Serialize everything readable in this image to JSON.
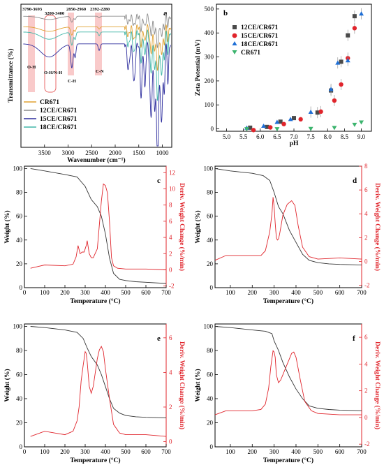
{
  "chart_data": [
    {
      "panel": "a",
      "type": "line",
      "xlabel": "Wavenumber (cm⁻¹)",
      "ylabel": "Transmittance (%)",
      "xlim": [
        4000,
        800
      ],
      "x_ticks": [
        4000,
        3500,
        3000,
        2500,
        2000,
        1500,
        1000
      ],
      "x_tick_labels": [
        "",
        "3500",
        "3000",
        "2500",
        "2000",
        "1500",
        "1000"
      ],
      "band_labels": [
        "3790-3693",
        "3200-3400",
        "2850-2960",
        "2392-2280"
      ],
      "band_names": [
        "O-H",
        "O-H/N-H",
        "C-H",
        "C-N"
      ],
      "series": [
        {
          "name": "CR671",
          "color": "#e0a030",
          "offset": 0.85
        },
        {
          "name": "12CE/CR671",
          "color": "#8c8c8c",
          "offset": 0.93
        },
        {
          "name": "15CE/CR671",
          "color": "#2e2e9e",
          "offset": 0.72
        },
        {
          "name": "18CE/CR671",
          "color": "#40b6a8",
          "offset": 0.81
        }
      ]
    },
    {
      "panel": "b",
      "type": "scatter",
      "xlabel": "pH",
      "ylabel": "Zeta Potential (mV)",
      "xlim": [
        4.7,
        9.3
      ],
      "ylim": [
        -10,
        520
      ],
      "x_ticks": [
        5.0,
        5.5,
        6.0,
        6.5,
        7.0,
        7.5,
        8.0,
        8.5,
        9.0
      ],
      "x_tick_labels": [
        "5.0",
        "5.5",
        "6.0",
        "6.5",
        "7.0",
        "7.5",
        "8.0",
        "8.5",
        "9.0"
      ],
      "y_ticks": [
        0,
        100,
        200,
        300,
        400,
        500
      ],
      "y_tick_labels": [
        "0",
        "100",
        "200",
        "300",
        "400",
        "500"
      ],
      "legend_position": "top-left",
      "series": [
        {
          "name": "12CE/CR671",
          "color": "#4a4a4a",
          "marker": "square",
          "x": [
            5.7,
            6.2,
            6.6,
            7.0,
            7.7,
            8.1,
            8.4,
            8.6,
            8.8
          ],
          "y": [
            5,
            8,
            30,
            45,
            68,
            160,
            280,
            390,
            470
          ]
        },
        {
          "name": "15CE/CR671",
          "color": "#e0242b",
          "marker": "circle",
          "x": [
            5.8,
            6.3,
            6.7,
            7.2,
            7.8,
            8.2,
            8.4,
            8.6,
            8.8
          ],
          "y": [
            -5,
            6,
            20,
            40,
            72,
            118,
            185,
            295,
            420
          ]
        },
        {
          "name": "18CE/CR671",
          "color": "#1f6fd6",
          "marker": "triangle",
          "x": [
            5.6,
            6.1,
            6.5,
            6.9,
            7.5,
            8.1,
            8.3,
            8.6,
            9.0
          ],
          "y": [
            4,
            12,
            28,
            40,
            70,
            165,
            275,
            285,
            480
          ]
        },
        {
          "name": "CR671",
          "color": "#3cb46e",
          "marker": "triangle-down",
          "x": [
            5.6,
            6.5,
            7.5,
            8.2,
            8.8,
            9.0
          ],
          "y": [
            0,
            0,
            1,
            5,
            18,
            28
          ]
        }
      ]
    },
    {
      "panel": "c",
      "type": "line",
      "xlabel": "Temperature (°C)",
      "ylabel": "Weight (%)",
      "y2label": "Deriv. Weight Change (%/min)",
      "xlim": [
        0,
        700
      ],
      "ylim": [
        0,
        102
      ],
      "y2lim": [
        -2.2,
        12.8
      ],
      "x_ticks": [
        0,
        100,
        200,
        300,
        400,
        500,
        600,
        700
      ],
      "y_ticks": [
        0,
        20,
        40,
        60,
        80,
        100
      ],
      "y2_ticks": [
        -2,
        0,
        2,
        4,
        6,
        8,
        10,
        12
      ],
      "weight": {
        "x": [
          30,
          100,
          200,
          260,
          300,
          330,
          360,
          380,
          400,
          420,
          440,
          470,
          500,
          550,
          600,
          700
        ],
        "y": [
          100,
          98,
          95,
          93,
          85,
          74,
          68,
          60,
          45,
          25,
          12,
          7,
          6,
          5,
          4.5,
          3.5
        ]
      },
      "deriv": {
        "x": [
          30,
          100,
          200,
          240,
          255,
          265,
          275,
          285,
          295,
          305,
          310,
          320,
          330,
          340,
          360,
          380,
          390,
          400,
          410,
          420,
          430,
          440,
          460,
          500,
          600,
          700
        ],
        "y": [
          0.2,
          0.6,
          0.5,
          0.7,
          1.6,
          3.0,
          2.0,
          2.2,
          2.2,
          3.0,
          3.6,
          2.0,
          1.5,
          1.5,
          2.6,
          8.5,
          10.6,
          10.4,
          9.5,
          6.0,
          1.5,
          0.5,
          0.2,
          0.1,
          0.1,
          0.0
        ]
      }
    },
    {
      "panel": "d",
      "type": "line",
      "xlabel": "Temperature (°C)",
      "ylabel": "Weight (%)",
      "y2label": "Deriv. Weight Change (%/min)",
      "xlim": [
        30,
        700
      ],
      "ylim": [
        0,
        102
      ],
      "y2lim": [
        -2.2,
        8.0
      ],
      "x_ticks": [
        100,
        200,
        300,
        400,
        500,
        600,
        700
      ],
      "y_ticks": [
        0,
        20,
        40,
        60,
        80,
        100
      ],
      "y2_ticks": [
        -2,
        0,
        2,
        4,
        6,
        8
      ],
      "weight": {
        "x": [
          30,
          100,
          200,
          250,
          280,
          300,
          320,
          340,
          370,
          400,
          430,
          460,
          500,
          550,
          600,
          700
        ],
        "y": [
          100,
          98,
          96,
          94,
          90,
          80,
          68,
          62,
          48,
          38,
          28,
          23,
          21,
          20,
          19.5,
          19
        ]
      },
      "deriv": {
        "x": [
          30,
          80,
          150,
          200,
          240,
          260,
          280,
          290,
          295,
          300,
          305,
          310,
          315,
          320,
          325,
          330,
          340,
          360,
          380,
          395,
          410,
          430,
          460,
          500,
          600,
          700
        ],
        "y": [
          0.1,
          0.5,
          0.5,
          0.5,
          0.5,
          0.9,
          2.5,
          4.0,
          5.4,
          4.6,
          3.2,
          2.0,
          1.8,
          1.9,
          2.3,
          2.8,
          3.9,
          4.8,
          5.1,
          4.7,
          3.0,
          1.2,
          0.4,
          0.2,
          0.3,
          0.2
        ]
      }
    },
    {
      "panel": "e",
      "type": "line",
      "xlabel": "Temperature (°C)",
      "ylabel": "Weight (%)",
      "y2label": "Deriv. Weight Change (%/min)",
      "xlim": [
        0,
        700
      ],
      "ylim": [
        0,
        102
      ],
      "y2lim": [
        -0.3,
        6.8
      ],
      "x_ticks": [
        0,
        100,
        200,
        300,
        400,
        500,
        600,
        700
      ],
      "y_ticks": [
        0,
        20,
        40,
        60,
        80,
        100
      ],
      "y2_ticks": [
        0,
        2,
        4,
        6
      ],
      "weight": {
        "x": [
          30,
          100,
          200,
          260,
          290,
          310,
          330,
          360,
          380,
          400,
          420,
          440,
          470,
          500,
          550,
          600,
          700
        ],
        "y": [
          100,
          99,
          97,
          95,
          90,
          82,
          75,
          68,
          60,
          50,
          40,
          32,
          28,
          26,
          25,
          24.5,
          24
        ]
      },
      "deriv": {
        "x": [
          30,
          100,
          150,
          200,
          240,
          260,
          270,
          280,
          290,
          300,
          305,
          310,
          320,
          330,
          340,
          350,
          360,
          370,
          380,
          390,
          400,
          420,
          440,
          470,
          500,
          600,
          700
        ],
        "y": [
          0.3,
          0.6,
          0.5,
          0.4,
          0.6,
          1.2,
          2.0,
          3.5,
          4.4,
          5.2,
          5.1,
          4.6,
          3.2,
          2.8,
          3.2,
          4.0,
          4.8,
          5.3,
          5.5,
          5.2,
          4.2,
          2.5,
          1.0,
          0.5,
          0.4,
          0.4,
          0.3
        ]
      }
    },
    {
      "panel": "f",
      "type": "line",
      "xlabel": "Temperature (°C)",
      "ylabel": "Weight (%)",
      "y2label": "Deriv. Weight Change (%/min)",
      "xlim": [
        30,
        700
      ],
      "ylim": [
        0,
        102
      ],
      "y2lim": [
        -2.2,
        7.0
      ],
      "x_ticks": [
        100,
        200,
        300,
        400,
        500,
        600,
        700
      ],
      "y_ticks": [
        0,
        20,
        40,
        60,
        80,
        100
      ],
      "y2_ticks": [
        -2,
        0,
        2,
        4,
        6
      ],
      "weight": {
        "x": [
          30,
          100,
          200,
          260,
          290,
          300,
          320,
          340,
          370,
          400,
          430,
          460,
          500,
          550,
          600,
          700
        ],
        "y": [
          100,
          99,
          97,
          96,
          94,
          88,
          80,
          70,
          58,
          48,
          40,
          34,
          32,
          31,
          30.5,
          30
        ]
      },
      "deriv": {
        "x": [
          30,
          80,
          150,
          200,
          240,
          260,
          275,
          285,
          295,
          300,
          305,
          310,
          320,
          330,
          340,
          350,
          360,
          370,
          380,
          390,
          400,
          420,
          440,
          470,
          500,
          600,
          700
        ],
        "y": [
          0.2,
          0.5,
          0.5,
          0.5,
          0.6,
          1.0,
          2.2,
          3.8,
          5.0,
          4.9,
          4.5,
          3.2,
          2.6,
          2.8,
          3.2,
          3.6,
          4.0,
          4.4,
          4.8,
          4.9,
          4.5,
          2.8,
          1.2,
          0.5,
          0.3,
          0.2,
          0.2
        ]
      }
    }
  ]
}
